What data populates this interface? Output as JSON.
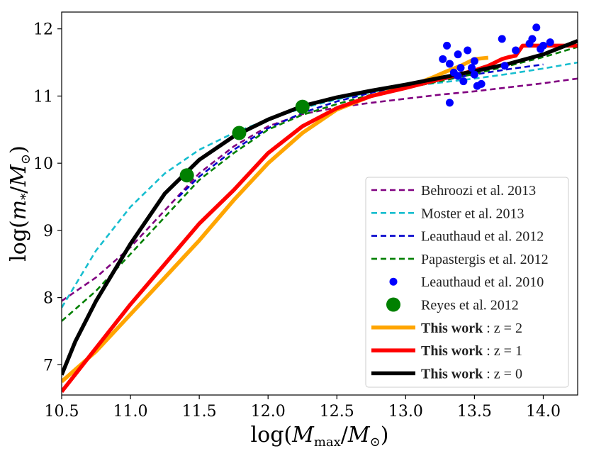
{
  "chart_data": {
    "type": "line",
    "xlabel": "log(M_max/M_⊙)",
    "ylabel": "log(m_*/M_⊙)",
    "xlim": [
      10.5,
      14.25
    ],
    "ylim": [
      6.55,
      12.25
    ],
    "xticks": [
      10.5,
      11.0,
      11.5,
      12.0,
      12.5,
      13.0,
      13.5,
      14.0
    ],
    "xtick_labels": [
      "10.5",
      "11.0",
      "11.5",
      "12.0",
      "12.5",
      "13.0",
      "13.5",
      "14.0"
    ],
    "yticks": [
      7,
      8,
      9,
      10,
      11,
      12
    ],
    "ytick_labels": [
      "7",
      "8",
      "9",
      "10",
      "11",
      "12"
    ],
    "grid": false,
    "legend_position": "lower-right",
    "series": [
      {
        "name": "Behroozi et al. 2013",
        "kind": "dashed",
        "color": "#800080",
        "x": [
          10.5,
          10.75,
          11.0,
          11.25,
          11.5,
          11.75,
          12.0,
          12.25,
          12.5,
          12.75,
          13.0,
          13.25,
          13.5,
          13.75,
          14.0,
          14.25
        ],
        "y": [
          7.95,
          8.3,
          8.75,
          9.3,
          9.85,
          10.25,
          10.55,
          10.73,
          10.83,
          10.9,
          10.96,
          11.02,
          11.07,
          11.13,
          11.19,
          11.26
        ]
      },
      {
        "name": "Moster et al. 2013",
        "kind": "dashed",
        "color": "#17BECF",
        "x": [
          10.5,
          10.75,
          11.0,
          11.25,
          11.5,
          11.75,
          12.0,
          12.25,
          12.5,
          12.75,
          13.0,
          13.25,
          13.5,
          13.75,
          14.0,
          14.25
        ],
        "y": [
          7.85,
          8.7,
          9.35,
          9.85,
          10.2,
          10.45,
          10.65,
          10.82,
          10.95,
          11.06,
          11.14,
          11.2,
          11.26,
          11.33,
          11.41,
          11.5
        ]
      },
      {
        "name": "Leauthaud et al. 2012",
        "kind": "dashed",
        "color": "#0000CC",
        "x": [
          11.35,
          11.5,
          11.75,
          12.0,
          12.25,
          12.5,
          12.75,
          13.0,
          13.25,
          13.5,
          13.75,
          14.0
        ],
        "y": [
          9.5,
          9.8,
          10.2,
          10.52,
          10.75,
          10.92,
          11.05,
          11.15,
          11.24,
          11.32,
          11.4,
          11.47
        ]
      },
      {
        "name": "Papastergis et al. 2012",
        "kind": "dashed",
        "color": "#007F00",
        "x": [
          10.5,
          10.75,
          11.0,
          11.25,
          11.5,
          11.75,
          12.0,
          12.25,
          12.5,
          12.75,
          13.0,
          13.25,
          13.5,
          13.75,
          14.0,
          14.25
        ],
        "y": [
          7.65,
          8.1,
          8.65,
          9.2,
          9.75,
          10.15,
          10.5,
          10.72,
          10.88,
          11.02,
          11.12,
          11.22,
          11.33,
          11.45,
          11.58,
          11.73
        ]
      },
      {
        "name": "Leauthaud et al. 2010",
        "kind": "points",
        "color": "#0000FF",
        "x": [
          13.27,
          13.3,
          13.32,
          13.32,
          13.35,
          13.38,
          13.4,
          13.42,
          13.45,
          13.48,
          13.5,
          13.5,
          13.52,
          13.55,
          13.38,
          13.7,
          13.72,
          13.8,
          13.9,
          13.92,
          13.95,
          13.98,
          14.0,
          14.05
        ],
        "y": [
          11.55,
          11.75,
          11.48,
          10.9,
          11.35,
          11.3,
          11.42,
          11.22,
          11.68,
          11.42,
          11.52,
          11.32,
          11.15,
          11.18,
          11.62,
          11.85,
          11.45,
          11.68,
          11.78,
          11.85,
          12.02,
          11.7,
          11.75,
          11.8
        ]
      },
      {
        "name": "Reyes et al. 2012",
        "kind": "points-large",
        "color": "#008000",
        "x": [
          11.41,
          11.79,
          12.25
        ],
        "y": [
          9.82,
          10.45,
          10.84
        ]
      },
      {
        "name": "This work : z = 2",
        "kind": "thick",
        "color": "#FFA500",
        "x": [
          10.5,
          10.75,
          11.0,
          11.25,
          11.5,
          11.75,
          12.0,
          12.25,
          12.5,
          12.75,
          13.0,
          13.1,
          13.2,
          13.3,
          13.4,
          13.5,
          13.6
        ],
        "y": [
          6.75,
          7.2,
          7.75,
          8.3,
          8.85,
          9.45,
          10.0,
          10.45,
          10.8,
          11.0,
          11.13,
          11.2,
          11.28,
          11.37,
          11.45,
          11.55,
          11.57
        ]
      },
      {
        "name": "This work : z = 1",
        "kind": "thick",
        "color": "#FF0000",
        "x": [
          10.5,
          10.75,
          11.0,
          11.25,
          11.5,
          11.75,
          12.0,
          12.25,
          12.5,
          12.75,
          13.0,
          13.25,
          13.5,
          13.6,
          13.7,
          13.75,
          13.8,
          13.85,
          14.0,
          14.25
        ],
        "y": [
          6.6,
          7.25,
          7.9,
          8.5,
          9.1,
          9.6,
          10.15,
          10.55,
          10.82,
          11.0,
          11.12,
          11.25,
          11.38,
          11.45,
          11.55,
          11.58,
          11.6,
          11.75,
          11.75,
          11.75
        ]
      },
      {
        "name": "This work : z = 0",
        "kind": "thick",
        "color": "#000000",
        "x": [
          10.5,
          10.6,
          10.75,
          11.0,
          11.25,
          11.5,
          11.75,
          12.0,
          12.25,
          12.5,
          12.75,
          13.0,
          13.25,
          13.5,
          13.75,
          14.0,
          14.25
        ],
        "y": [
          6.85,
          7.35,
          7.95,
          8.8,
          9.55,
          10.05,
          10.4,
          10.65,
          10.85,
          10.98,
          11.08,
          11.17,
          11.27,
          11.37,
          11.48,
          11.62,
          11.82
        ]
      }
    ],
    "legend": [
      {
        "bold": "",
        "text": "Behroozi et al. 2013"
      },
      {
        "bold": "",
        "text": "Moster et al. 2013"
      },
      {
        "bold": "",
        "text": "Leauthaud et al. 2012"
      },
      {
        "bold": "",
        "text": "Papastergis et al. 2012"
      },
      {
        "bold": "",
        "text": "Leauthaud et al. 2010"
      },
      {
        "bold": "",
        "text": "Reyes et al. 2012"
      },
      {
        "bold": "This work",
        "text": " : z = 2"
      },
      {
        "bold": "This work",
        "text": " : z = 1"
      },
      {
        "bold": "This work",
        "text": " : z = 0"
      }
    ]
  }
}
